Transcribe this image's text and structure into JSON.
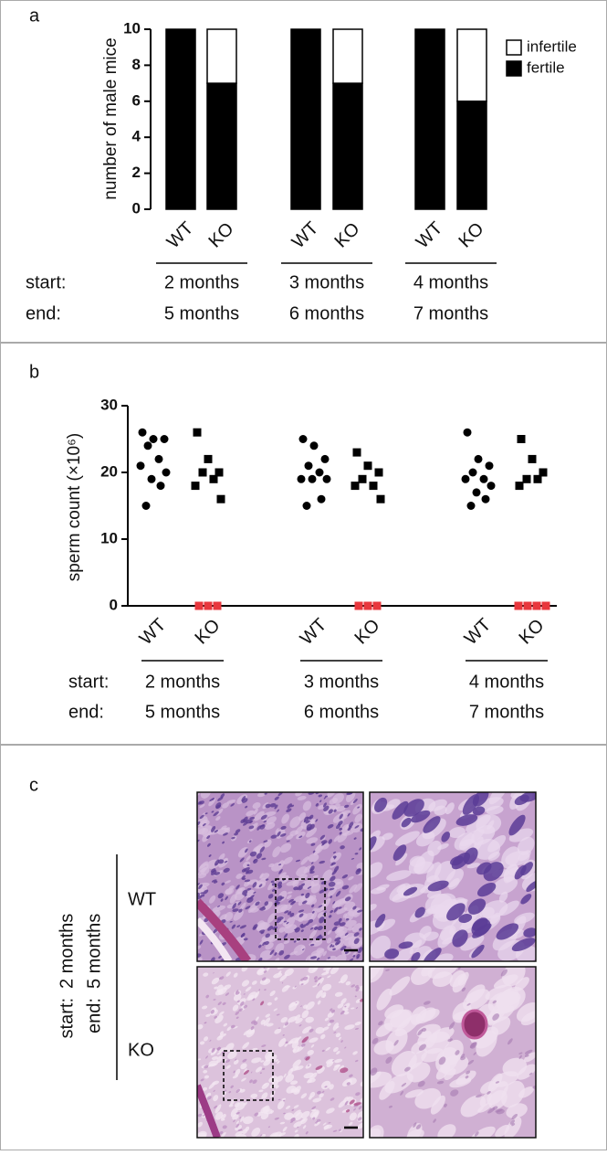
{
  "chart_data": [
    {
      "type": "bar",
      "stacked": true,
      "panel": "a",
      "ylabel": "number of male mice",
      "categories": [
        "WT",
        "KO",
        "WT",
        "KO",
        "WT",
        "KO"
      ],
      "series": [
        {
          "name": "fertile",
          "color": "#000000",
          "values": [
            10,
            7,
            10,
            7,
            10,
            6
          ]
        },
        {
          "name": "infertile",
          "color": "#ffffff",
          "values": [
            0,
            3,
            0,
            3,
            0,
            4
          ]
        }
      ],
      "ylim": [
        0,
        10
      ],
      "yticks": [
        0,
        2,
        4,
        6,
        8,
        10
      ],
      "legend": "upper right",
      "row_labels": [
        "start:",
        "end:"
      ],
      "groups": [
        {
          "start": "2 months",
          "end": "5 months"
        },
        {
          "start": "3 months",
          "end": "6 months"
        },
        {
          "start": "4 months",
          "end": "7 months"
        }
      ]
    },
    {
      "type": "strip",
      "panel": "b",
      "ylabel": "sperm count (×10⁶)",
      "categories": [
        "WT",
        "KO",
        "WT",
        "KO",
        "WT",
        "KO"
      ],
      "markers": [
        "circle",
        "square",
        "circle",
        "square",
        "circle",
        "square"
      ],
      "series": [
        {
          "color": "#000000",
          "values": [
            [
              26,
              25,
              25,
              24,
              22,
              21,
              20,
              19,
              18,
              15
            ],
            [
              26,
              22,
              20,
              20,
              19,
              18,
              16
            ],
            [
              25,
              24,
              22,
              21,
              20,
              19,
              19,
              19,
              16,
              15
            ],
            [
              23,
              21,
              20,
              19,
              18,
              18,
              16
            ],
            [
              26,
              22,
              21,
              20,
              19,
              19,
              18,
              17,
              16,
              15
            ],
            [
              25,
              22,
              20,
              19,
              19,
              18
            ]
          ]
        },
        {
          "color": "#e8373d",
          "values": [
            [],
            [
              0,
              0,
              0
            ],
            [],
            [
              0,
              0,
              0
            ],
            [],
            [
              0,
              0,
              0,
              0
            ]
          ]
        }
      ],
      "ylim": [
        0,
        30
      ],
      "yticks": [
        0,
        10,
        20,
        30
      ],
      "row_labels": [
        "start:",
        "end:"
      ],
      "groups": [
        {
          "start": "2 months",
          "end": "5 months"
        },
        {
          "start": "3 months",
          "end": "6 months"
        },
        {
          "start": "4 months",
          "end": "7 months"
        }
      ]
    }
  ],
  "panel_c": {
    "panel": "c",
    "conditions": [
      {
        "label": "start:",
        "value": "2 months"
      },
      {
        "label": "end:",
        "value": "5 months"
      }
    ],
    "rows": [
      "WT",
      "KO"
    ]
  }
}
